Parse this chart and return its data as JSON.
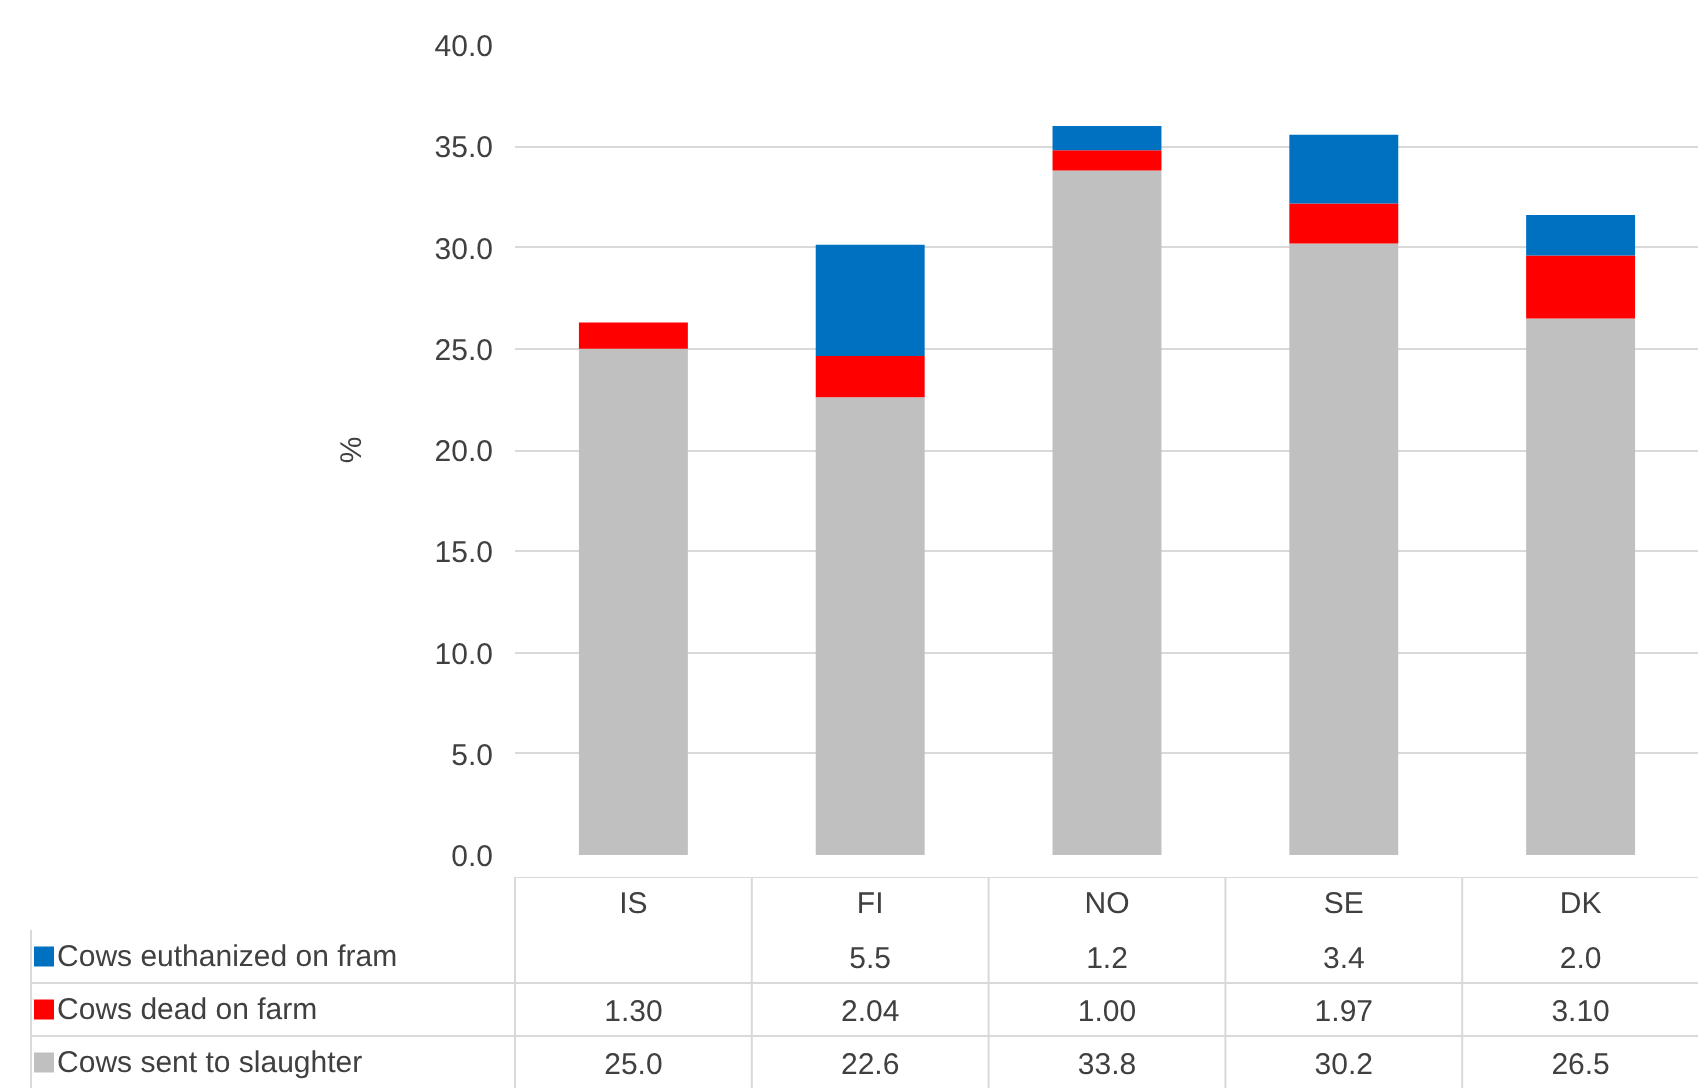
{
  "chart_data": {
    "type": "bar",
    "stacked": true,
    "ylabel": "%",
    "categories": [
      "IS",
      "FI",
      "NO",
      "SE",
      "DK"
    ],
    "series": [
      {
        "name": "Cows sent to slaughter",
        "color": "#c0c0c0",
        "values": [
          25.0,
          22.6,
          33.8,
          30.2,
          26.5
        ],
        "value_labels": [
          "25.0",
          "22.6",
          "33.8",
          "30.2",
          "26.5"
        ]
      },
      {
        "name": "Cows dead on farm",
        "color": "#ff0000",
        "values": [
          1.3,
          2.04,
          1.0,
          1.97,
          3.1
        ],
        "value_labels": [
          "1.30",
          "2.04",
          "1.00",
          "1.97",
          "3.10"
        ]
      },
      {
        "name": "Cows euthanized on fram",
        "color": "#0070c0",
        "values": [
          null,
          5.5,
          1.2,
          3.4,
          2.0
        ],
        "value_labels": [
          null,
          "5.5",
          "1.2",
          "3.4",
          "2.0"
        ]
      }
    ],
    "ylim": [
      0,
      40
    ],
    "yticks": [
      {
        "value": 0,
        "label": "0.0"
      },
      {
        "value": 5,
        "label": "5.0"
      },
      {
        "value": 10,
        "label": "10.0"
      },
      {
        "value": 15,
        "label": "15.0"
      },
      {
        "value": 20,
        "label": "20.0"
      },
      {
        "value": 25,
        "label": "25.0"
      },
      {
        "value": 30,
        "label": "30.0"
      },
      {
        "value": 35,
        "label": "35.0"
      },
      {
        "value": 40,
        "label": "40.0"
      }
    ],
    "grid": "y",
    "legend": "bottom"
  }
}
